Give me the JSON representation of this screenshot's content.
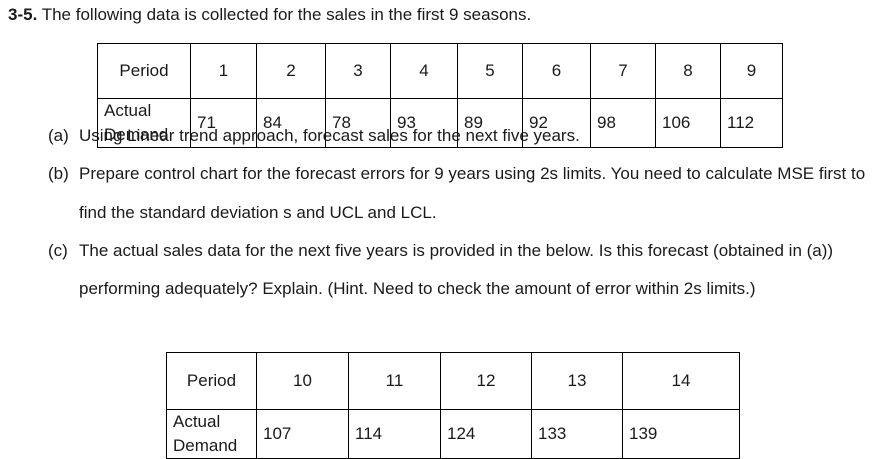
{
  "problem": {
    "number": "3-5.",
    "text": "The following data is collected for the sales in the first 9 seasons."
  },
  "table1": {
    "rows": [
      [
        "Period",
        1,
        2,
        3,
        4,
        5,
        6,
        7,
        8,
        9
      ],
      [
        "Actual Demand",
        71,
        84,
        78,
        93,
        89,
        92,
        98,
        106,
        112
      ]
    ]
  },
  "parts": [
    {
      "label": "(a)",
      "text": "Using Linear trend approach, forecast sales for the next five years."
    },
    {
      "label": "(b)",
      "text": "Prepare control chart for the forecast errors for 9 years using 2s limits. You need to calculate MSE first to find the standard deviation s and UCL and LCL."
    },
    {
      "label": "(c)",
      "text": "The actual sales data for the next five years is provided in the below. Is this forecast (obtained in (a)) performing adequately? Explain. (Hint. Need to check the amount of error within 2s limits.)"
    }
  ],
  "table2": {
    "rows": [
      [
        "Period",
        10,
        11,
        12,
        13,
        14
      ],
      [
        "Actual Demand",
        107,
        114,
        124,
        133,
        139
      ]
    ]
  }
}
